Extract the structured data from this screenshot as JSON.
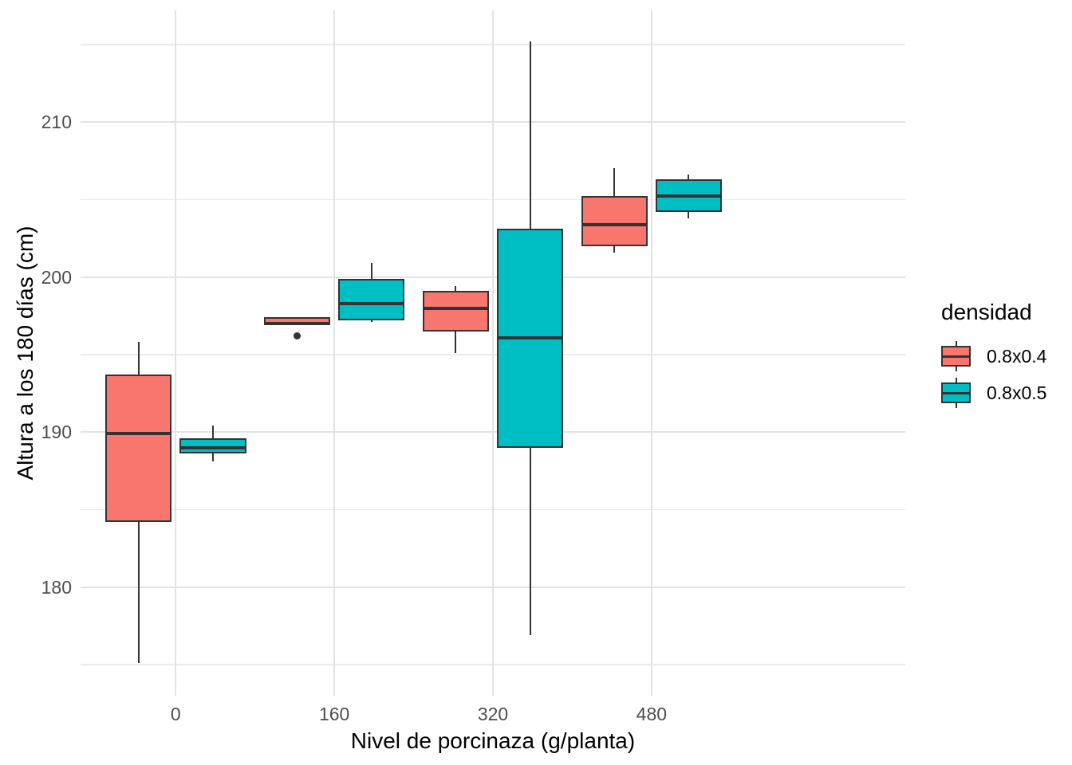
{
  "chart_data": {
    "type": "boxplot",
    "title": "",
    "xlabel": "Nivel de porcinaza (g/planta)",
    "ylabel": "Altura a los 180 días (cm)",
    "x_categories": [
      "0",
      "160",
      "320",
      "480"
    ],
    "y_major_ticks": [
      180,
      190,
      200,
      210
    ],
    "y_minor_ticks": [
      175,
      185,
      195,
      205,
      215
    ],
    "ylim": [
      173.0,
      217.2
    ],
    "grid": {
      "horizontal_major": true,
      "horizontal_minor": true,
      "vertical_major_at_categories": true,
      "vertical_minor": false
    },
    "legend": {
      "title": "densidad",
      "position": "right",
      "entries": [
        {
          "label": "0.8x0.4",
          "color": "#F8766D"
        },
        {
          "label": "0.8x0.5",
          "color": "#00BFC4"
        }
      ]
    },
    "series": [
      {
        "name": "0.8x0.4",
        "color": "#F8766D",
        "boxes": [
          {
            "category": "0",
            "whisker_min": 175.1,
            "q1": 184.2,
            "median": 189.9,
            "q3": 193.7,
            "whisker_max": 195.8,
            "outliers": []
          },
          {
            "category": "160",
            "whisker_min": 197.0,
            "q1": 197.0,
            "median": 197.0,
            "q3": 197.4,
            "whisker_max": 197.4,
            "outliers": [
              196.2
            ]
          },
          {
            "category": "320",
            "whisker_min": 195.1,
            "q1": 196.5,
            "median": 198.0,
            "q3": 199.1,
            "whisker_max": 199.4,
            "outliers": []
          },
          {
            "category": "480",
            "whisker_min": 201.6,
            "q1": 202.0,
            "median": 203.4,
            "q3": 205.2,
            "whisker_max": 207.0,
            "outliers": []
          }
        ]
      },
      {
        "name": "0.8x0.5",
        "color": "#00BFC4",
        "boxes": [
          {
            "category": "0",
            "whisker_min": 188.1,
            "q1": 188.6,
            "median": 189.0,
            "q3": 189.6,
            "whisker_max": 190.4,
            "outliers": []
          },
          {
            "category": "160",
            "whisker_min": 197.1,
            "q1": 197.2,
            "median": 198.3,
            "q3": 199.9,
            "whisker_max": 200.9,
            "outliers": []
          },
          {
            "category": "320",
            "whisker_min": 176.9,
            "q1": 189.0,
            "median": 196.1,
            "q3": 203.1,
            "whisker_max": 215.2,
            "outliers": []
          },
          {
            "category": "480",
            "whisker_min": 203.8,
            "q1": 204.2,
            "median": 205.2,
            "q3": 206.3,
            "whisker_max": 206.6,
            "outliers": []
          }
        ]
      }
    ]
  }
}
